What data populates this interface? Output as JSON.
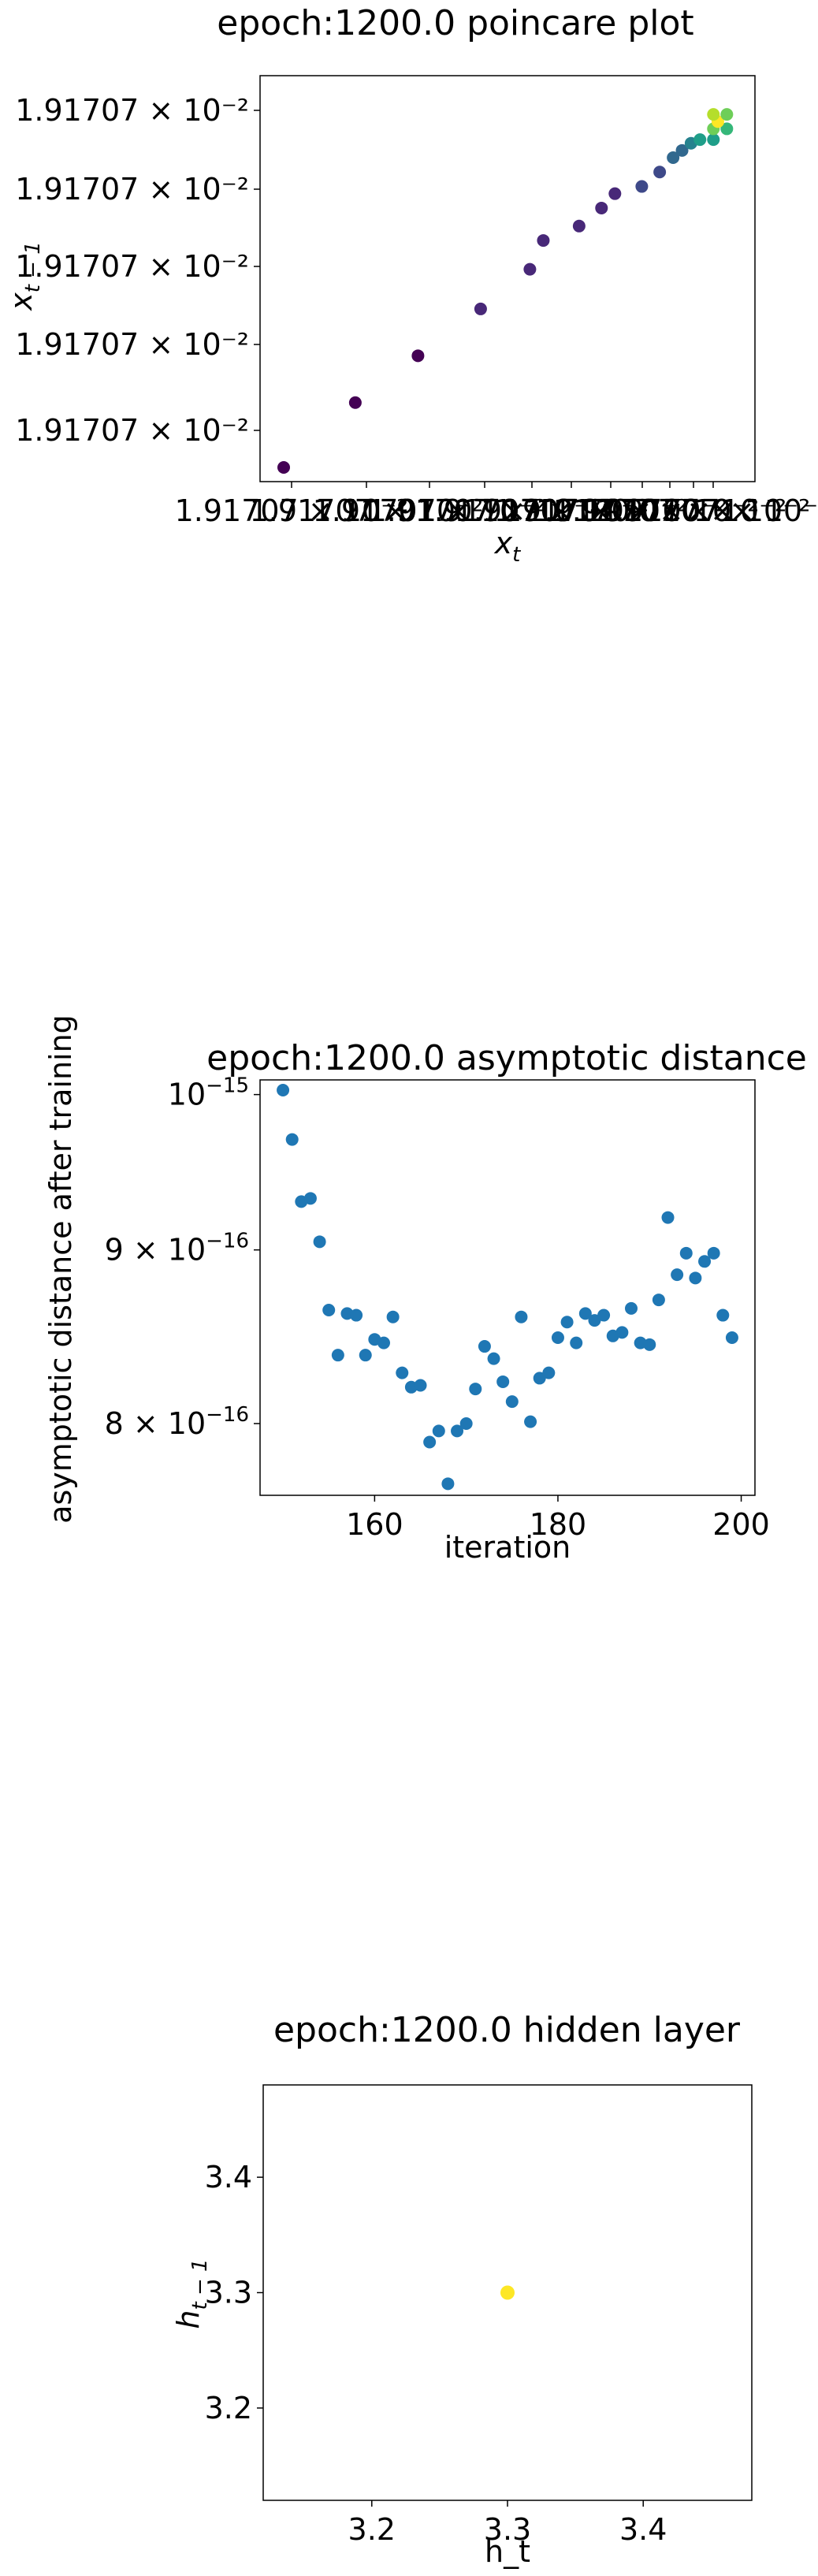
{
  "chart_data": [
    {
      "type": "scatter",
      "title": "epoch:1200.0 poincare plot",
      "xlabel_base": "x",
      "xlabel_sub": "t",
      "ylabel_base": "x",
      "ylabel_sub": "t − 1",
      "ytick_labels": [
        "1.91707 × 10⁻²",
        "1.91707 × 10⁻²",
        "1.91707 × 10⁻²",
        "1.91707 × 10⁻²",
        "1.91707 × 10⁻²"
      ],
      "xtick_label_overlap": "1.91707 × 10⁻²",
      "colormap": "viridis",
      "grid": false,
      "points": [
        {
          "x": 0.0,
          "y": 0.0,
          "c": 0.0
        },
        {
          "x": 0.16,
          "y": 0.18,
          "c": 0.02
        },
        {
          "x": 0.3,
          "y": 0.31,
          "c": 0.04
        },
        {
          "x": 0.44,
          "y": 0.44,
          "c": 0.06
        },
        {
          "x": 0.55,
          "y": 0.55,
          "c": 0.08
        },
        {
          "x": 0.58,
          "y": 0.63,
          "c": 0.1
        },
        {
          "x": 0.66,
          "y": 0.67,
          "c": 0.12
        },
        {
          "x": 0.71,
          "y": 0.72,
          "c": 0.14
        },
        {
          "x": 0.74,
          "y": 0.76,
          "c": 0.16
        },
        {
          "x": 0.8,
          "y": 0.78,
          "c": 0.2
        },
        {
          "x": 0.84,
          "y": 0.82,
          "c": 0.25
        },
        {
          "x": 0.87,
          "y": 0.86,
          "c": 0.3
        },
        {
          "x": 0.89,
          "y": 0.88,
          "c": 0.35
        },
        {
          "x": 0.91,
          "y": 0.9,
          "c": 0.45
        },
        {
          "x": 0.93,
          "y": 0.91,
          "c": 0.55
        },
        {
          "x": 0.96,
          "y": 0.91,
          "c": 0.6
        },
        {
          "x": 0.96,
          "y": 0.94,
          "c": 0.75
        },
        {
          "x": 0.99,
          "y": 0.94,
          "c": 0.7
        },
        {
          "x": 0.97,
          "y": 0.96,
          "c": 1.0
        },
        {
          "x": 0.96,
          "y": 0.98,
          "c": 0.85
        },
        {
          "x": 0.99,
          "y": 0.98,
          "c": 0.8
        }
      ]
    },
    {
      "type": "scatter",
      "title": "epoch:1200.0 asymptotic distance",
      "xlabel": "iteration",
      "ylabel": "asymptotic distance after training",
      "yscale": "log",
      "xlim": [
        147.5,
        201.5
      ],
      "ylim": [
        7.62e-16,
        1.01e-15
      ],
      "xticks": [
        160,
        180,
        200
      ],
      "ytick_labels": [
        {
          "value": 8e-16,
          "mantissa": "8 × 10",
          "exp": "−16"
        },
        {
          "value": 9e-16,
          "mantissa": "9 × 10",
          "exp": "−16"
        },
        {
          "value": 1e-15,
          "mantissa": "10",
          "exp": "−15"
        }
      ],
      "color": "#1f77b4",
      "grid": false,
      "x": [
        150,
        151,
        152,
        153,
        154,
        155,
        156,
        157,
        158,
        159,
        160,
        161,
        162,
        163,
        164,
        165,
        166,
        167,
        168,
        169,
        170,
        171,
        172,
        173,
        174,
        175,
        176,
        177,
        178,
        179,
        180,
        181,
        182,
        183,
        184,
        185,
        186,
        187,
        188,
        189,
        190,
        191,
        192,
        193,
        194,
        195,
        196,
        197,
        198,
        199
      ],
      "y": [
        1.003e-15,
        9.7e-16,
        9.3e-16,
        9.32e-16,
        9.05e-16,
        8.64e-16,
        8.38e-16,
        8.62e-16,
        8.61e-16,
        8.38e-16,
        8.47e-16,
        8.45e-16,
        8.6e-16,
        8.28e-16,
        8.2e-16,
        8.21e-16,
        7.9e-16,
        7.96e-16,
        7.68e-16,
        7.96e-16,
        8e-16,
        8.19e-16,
        8.43e-16,
        8.36e-16,
        8.23e-16,
        8.12e-16,
        8.6e-16,
        8.01e-16,
        8.25e-16,
        8.28e-16,
        8.48e-16,
        8.57e-16,
        8.45e-16,
        8.62e-16,
        8.58e-16,
        8.61e-16,
        8.49e-16,
        8.51e-16,
        8.65e-16,
        8.45e-16,
        8.44e-16,
        8.7e-16,
        9.2e-16,
        8.85e-16,
        8.98e-16,
        8.83e-16,
        8.93e-16,
        8.98e-16,
        8.61e-16,
        8.48e-16
      ]
    },
    {
      "type": "scatter",
      "title": "epoch:1200.0 hidden layer",
      "xlabel": "h_t",
      "ylabel_base": "h",
      "ylabel_sub": "t − 1",
      "xlim": [
        3.12,
        3.48
      ],
      "ylim": [
        3.12,
        3.48
      ],
      "xticks": [
        3.2,
        3.3,
        3.4
      ],
      "yticks": [
        3.2,
        3.3,
        3.4
      ],
      "color": "#fde725",
      "grid": false,
      "points": [
        {
          "x": 3.3,
          "y": 3.3
        }
      ]
    }
  ]
}
